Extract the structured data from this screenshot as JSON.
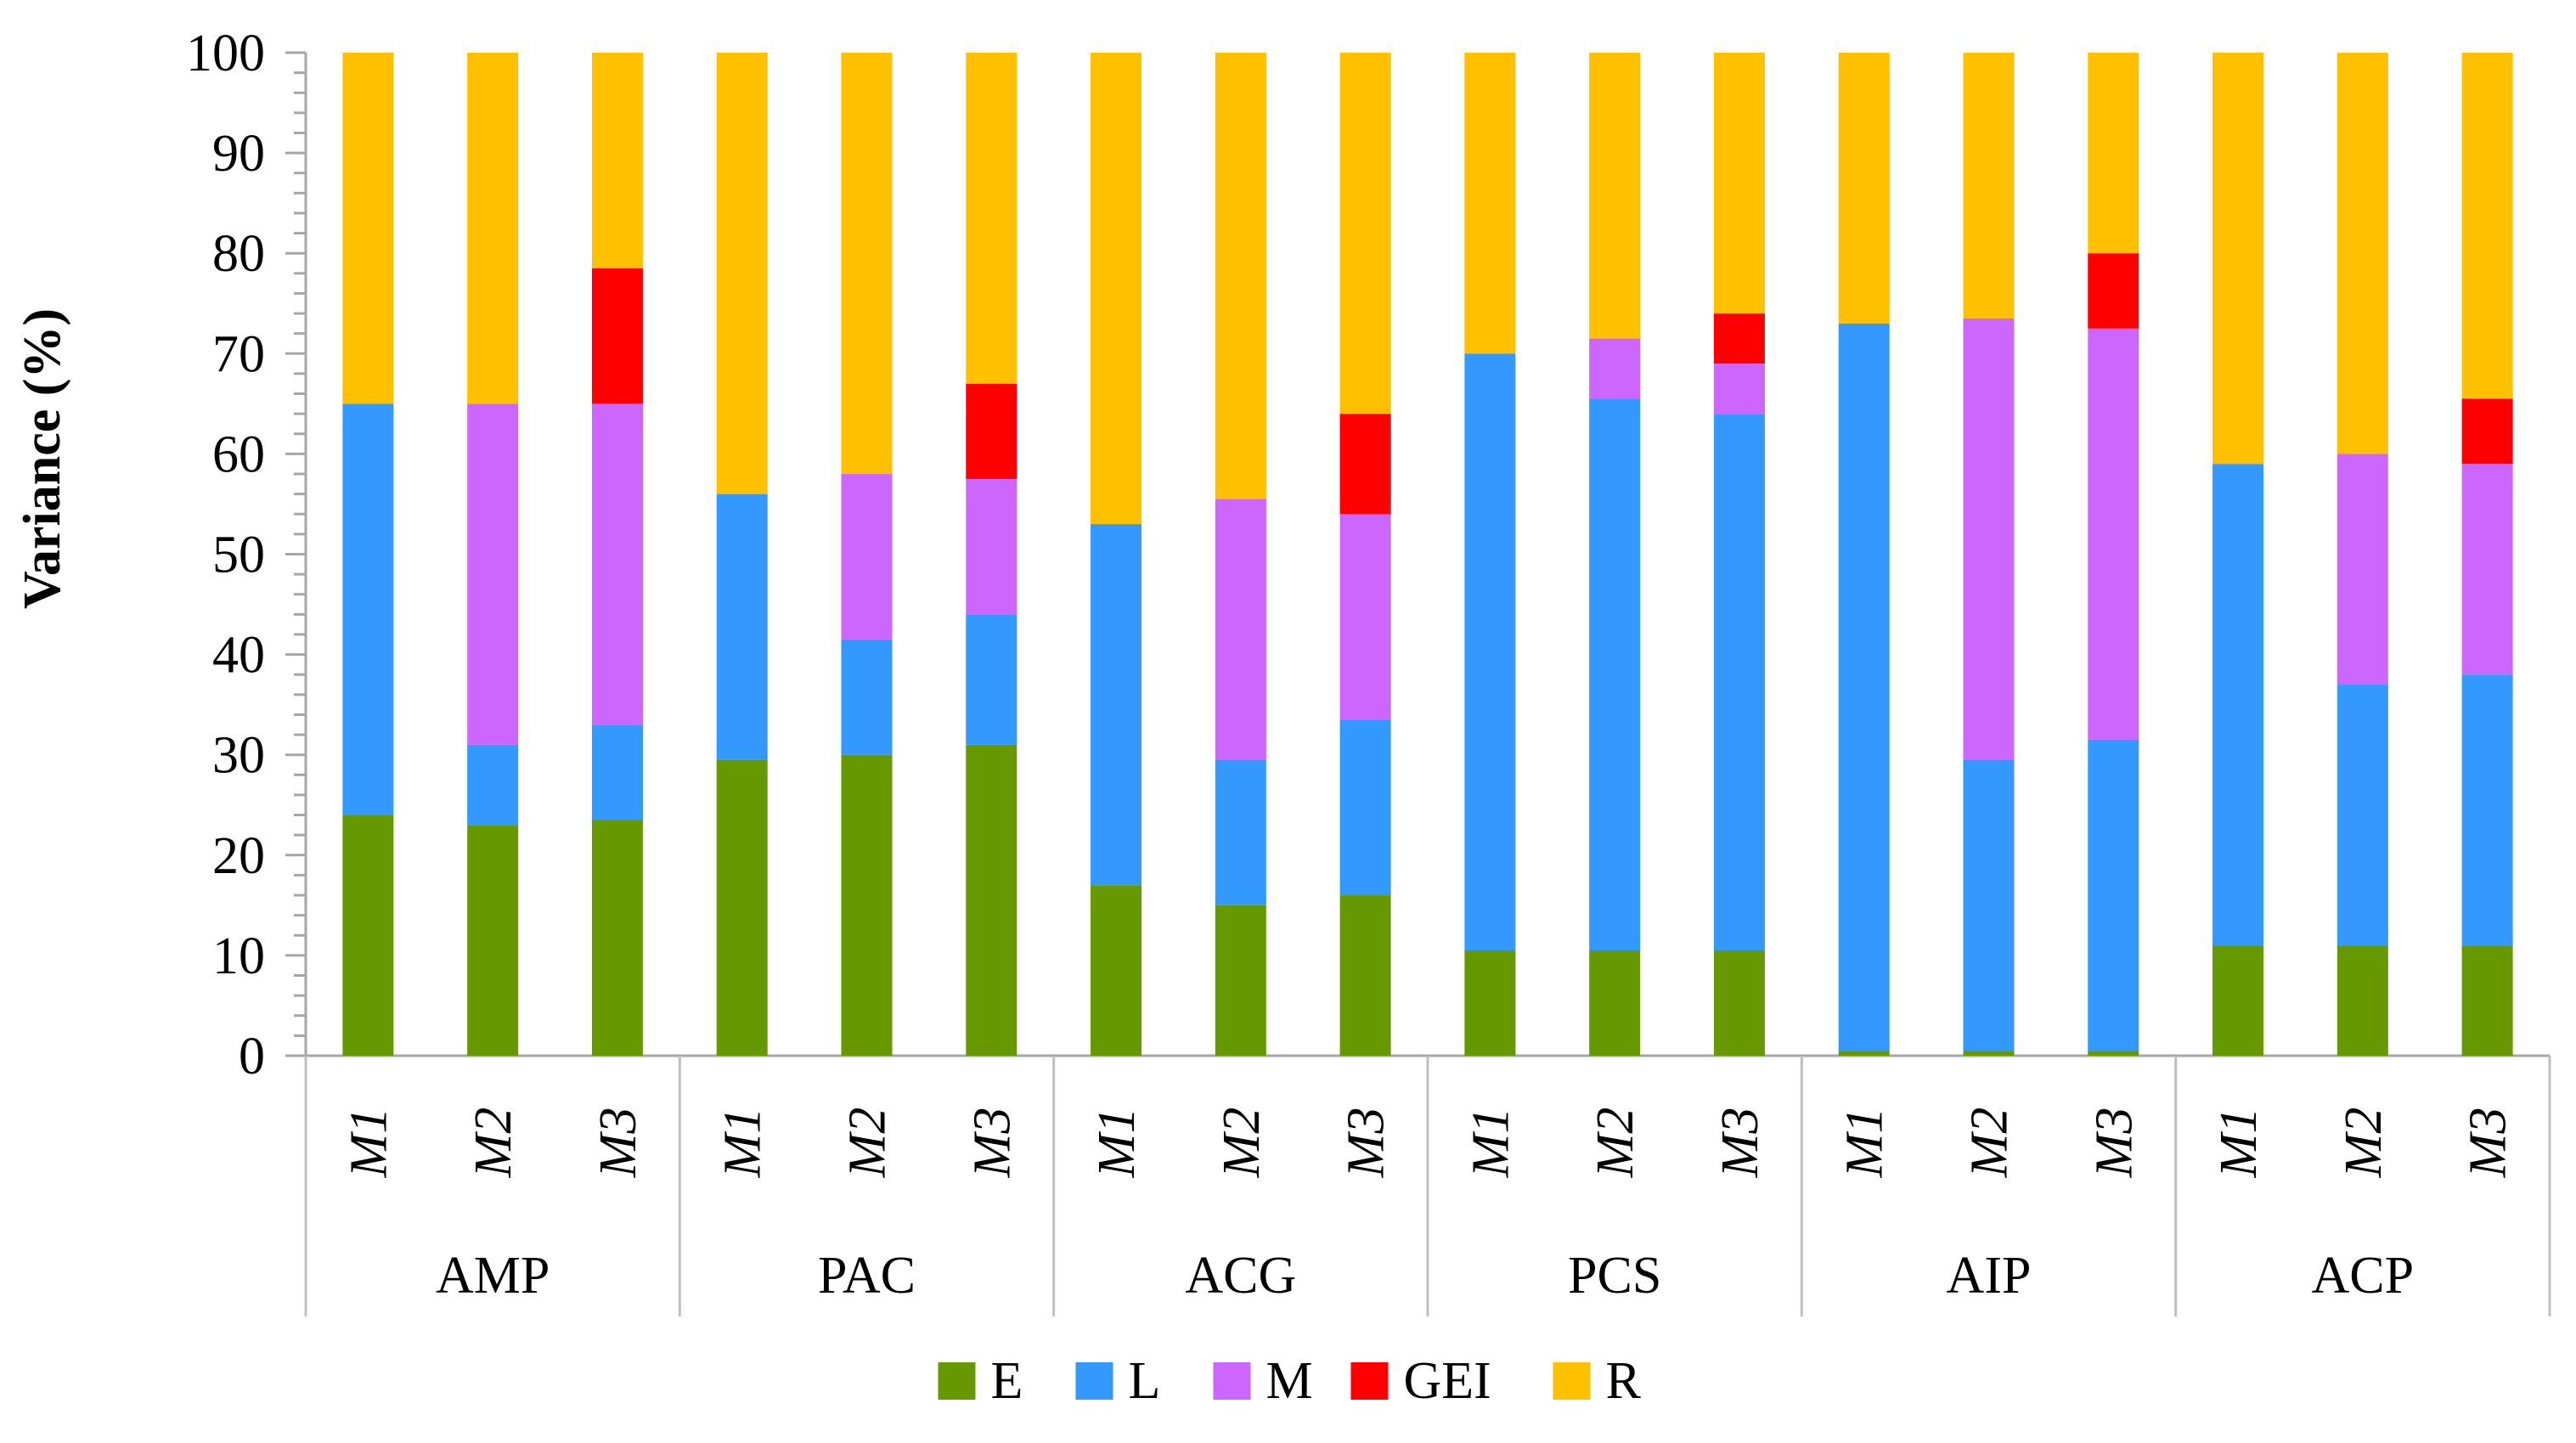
{
  "chart_data": {
    "type": "bar",
    "stacked": true,
    "title": "",
    "xlabel": "",
    "ylabel": "Variance (%)",
    "ylim": [
      0,
      100
    ],
    "yticks": [
      0,
      10,
      20,
      30,
      40,
      50,
      60,
      70,
      80,
      90,
      100
    ],
    "legend_position": "bottom",
    "groups": [
      "AMP",
      "PAC",
      "ACG",
      "PCS",
      "AIP",
      "ACP"
    ],
    "models": [
      "M1",
      "M2",
      "M3"
    ],
    "series": [
      {
        "name": "E",
        "color": "#669900",
        "values": [
          24,
          23,
          23.5,
          29.5,
          30,
          31,
          17,
          15,
          16,
          10.5,
          10.5,
          10.5,
          0.5,
          0.5,
          0.5,
          11,
          11,
          11
        ]
      },
      {
        "name": "L",
        "color": "#3399FF",
        "values": [
          41,
          8,
          9.5,
          26.5,
          11.5,
          13,
          36,
          14.5,
          17.5,
          59.5,
          55,
          53.5,
          72.5,
          29,
          31,
          48,
          26,
          27
        ]
      },
      {
        "name": "M",
        "color": "#CC66FF",
        "values": [
          0,
          34,
          32,
          0,
          16.5,
          13.5,
          0,
          26,
          20.5,
          0,
          6,
          5,
          0,
          44,
          41,
          0,
          23,
          21
        ]
      },
      {
        "name": "GEI",
        "color": "#FF0000",
        "values": [
          0,
          0,
          13.5,
          0,
          0,
          9.5,
          0,
          0,
          10,
          0,
          0,
          5,
          0,
          0,
          7.5,
          0,
          0,
          6.5
        ]
      },
      {
        "name": "R",
        "color": "#FFC000",
        "values": [
          35,
          35,
          21.5,
          44,
          42,
          33,
          47,
          44.5,
          36,
          30,
          28.5,
          26,
          27,
          26.5,
          20,
          41,
          40,
          34.5
        ]
      }
    ]
  }
}
